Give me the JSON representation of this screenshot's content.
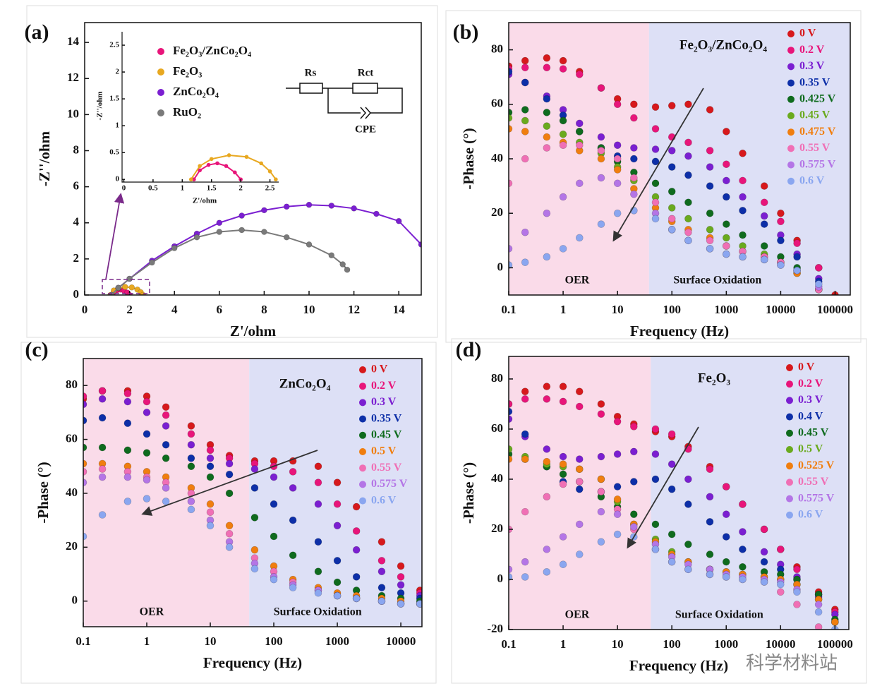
{
  "chart_data": [
    {
      "type": "scatter",
      "panel_label": "(a)",
      "xlabel": "Z'/ohm",
      "ylabel": "-Z''/ohm",
      "xlim": [
        0,
        15
      ],
      "ylim": [
        0,
        15.1
      ],
      "xticks": [
        0,
        2,
        4,
        6,
        8,
        10,
        12,
        14
      ],
      "yticks": [
        0,
        2,
        4,
        6,
        8,
        10,
        12,
        14
      ],
      "series": [
        {
          "name": "Fe₂O₃/ZnCo₂O₄",
          "color": "#e8157a",
          "x": [
            1.2,
            1.3,
            1.45,
            1.6,
            1.75,
            1.9,
            2.0
          ],
          "values": [
            0,
            0.17,
            0.27,
            0.3,
            0.25,
            0.13,
            0
          ]
        },
        {
          "name": "Fe₂O₃",
          "color": "#e8a820",
          "x": [
            1.15,
            1.3,
            1.5,
            1.8,
            2.1,
            2.35,
            2.5,
            2.6
          ],
          "values": [
            0,
            0.25,
            0.38,
            0.45,
            0.42,
            0.3,
            0.15,
            0
          ]
        },
        {
          "name": "ZnCo₂O₄",
          "color": "#7b1fd1",
          "x": [
            1.2,
            1.5,
            2,
            3,
            4,
            5,
            6,
            7,
            8,
            9,
            10,
            11,
            12,
            13,
            14,
            15
          ],
          "values": [
            0,
            0.4,
            0.9,
            1.9,
            2.7,
            3.4,
            4.0,
            4.4,
            4.7,
            4.9,
            5.0,
            4.95,
            4.8,
            4.5,
            4.1,
            2.8
          ]
        },
        {
          "name": "RuO₂",
          "color": "#7a7a7a",
          "x": [
            1.2,
            1.5,
            2,
            3,
            4,
            5,
            6,
            7,
            8,
            9,
            10,
            11,
            11.5,
            11.7
          ],
          "values": [
            0,
            0.4,
            0.9,
            1.8,
            2.6,
            3.2,
            3.5,
            3.6,
            3.5,
            3.2,
            2.8,
            2.2,
            1.7,
            1.4
          ]
        }
      ],
      "inset": {
        "xlabel": "Z'/ohm",
        "ylabel": "-Z''/ohm",
        "xlim": [
          -0.03,
          2.65
        ],
        "ylim": [
          -0.05,
          2.75
        ],
        "xticks": [
          0.0,
          0.5,
          1.0,
          1.5,
          2.0,
          2.5
        ],
        "yticks": [
          0.0,
          0.5,
          1.0,
          1.5,
          2.0,
          2.5
        ]
      },
      "circuit": {
        "labels": [
          "Rs",
          "Rct",
          "CPE"
        ]
      }
    },
    {
      "type": "scatter",
      "panel_label": "(b)",
      "annotation": "Fe₂O₃/ZnCo₂O₄",
      "xlabel": "Frequency (Hz)",
      "ylabel": "-Phase (°)",
      "xscale": "log",
      "x": [
        0.1,
        0.2,
        0.5,
        1,
        2,
        5,
        10,
        20,
        50,
        100,
        200,
        500,
        1000,
        2000,
        5000,
        10000,
        20000,
        50000,
        100000
      ],
      "xlim": [
        0.1,
        190000
      ],
      "xticks": [
        0.1,
        1,
        10,
        100,
        1000,
        10000,
        100000
      ],
      "ylim": [
        -10,
        90
      ],
      "yticks": [
        0,
        20,
        40,
        60,
        80
      ],
      "regions": [
        {
          "label": "OER",
          "from": 0.1,
          "to": 38,
          "color": "#fadbe9"
        },
        {
          "label": "Surface Oxidation",
          "from": 38,
          "to": 190000,
          "color": "#dde0f6"
        }
      ],
      "series": [
        {
          "name": "0 V",
          "color": "#d7191c",
          "values": [
            74,
            76,
            77,
            76,
            72,
            66,
            62,
            60,
            59,
            59.5,
            60,
            58,
            50,
            42,
            30,
            20,
            10,
            0,
            -10
          ]
        },
        {
          "name": "0.2 V",
          "color": "#e8157a",
          "values": [
            73,
            73.5,
            73.5,
            73,
            71,
            66,
            60,
            55,
            51,
            48,
            46,
            43,
            38,
            32,
            24,
            17,
            9,
            0,
            null
          ]
        },
        {
          "name": "0.3 V",
          "color": "#7b1fd1",
          "values": [
            71,
            68,
            63,
            58,
            53,
            48,
            45,
            44,
            43.5,
            43,
            41,
            37,
            32,
            26,
            19,
            12,
            5,
            -4,
            null
          ]
        },
        {
          "name": "0.35 V",
          "color": "#0d2fa8",
          "values": [
            72,
            68,
            62,
            56,
            50,
            44,
            41,
            40,
            39,
            37,
            34,
            30,
            26,
            21,
            16,
            10,
            4,
            -5,
            null
          ]
        },
        {
          "name": "0.425 V",
          "color": "#0f6b1e",
          "values": [
            57,
            58,
            57,
            54,
            50,
            44,
            39,
            35,
            31,
            28,
            24,
            20,
            16,
            12,
            8,
            4,
            0,
            -8,
            null
          ]
        },
        {
          "name": "0.45 V",
          "color": "#6aaa1e",
          "values": [
            55,
            54,
            52,
            49,
            46,
            42,
            37,
            32,
            26,
            22,
            18,
            14,
            11,
            8,
            5,
            2,
            -2,
            -8,
            null
          ]
        },
        {
          "name": "0.475 V",
          "color": "#f07e0f",
          "values": [
            51,
            50,
            48,
            46,
            43,
            40,
            36,
            29,
            22,
            17,
            14,
            11,
            8,
            6,
            4,
            2,
            -2,
            -8,
            null
          ]
        },
        {
          "name": "0.55 V",
          "color": "#f06fb5",
          "values": [
            31,
            40,
            44,
            45,
            45,
            43,
            40,
            33,
            24,
            18,
            13,
            10,
            8,
            6,
            4,
            2,
            -1,
            -8,
            null
          ]
        },
        {
          "name": "0.575 V",
          "color": "#b475e6",
          "values": [
            7,
            13,
            20,
            26,
            31,
            33,
            31,
            27,
            20,
            14,
            10,
            7,
            5,
            4,
            3,
            1,
            -1,
            -7,
            null
          ]
        },
        {
          "name": "0.6 V",
          "color": "#8aa6f0",
          "values": [
            1,
            2,
            4,
            7,
            11,
            16,
            20,
            21,
            18,
            14,
            10,
            7,
            5,
            4,
            3,
            1,
            -1,
            -6,
            null
          ]
        }
      ]
    },
    {
      "type": "scatter",
      "panel_label": "(c)",
      "annotation": "ZnCo₂O₄",
      "xlabel": "Frequency (Hz)",
      "ylabel": "-Phase (°)",
      "xscale": "log",
      "x": [
        0.1,
        0.2,
        0.5,
        1,
        2,
        5,
        10,
        20,
        50,
        100,
        200,
        500,
        1000,
        2000,
        5000,
        10000,
        20000
      ],
      "xlim": [
        0.1,
        21500
      ],
      "xticks": [
        0.1,
        1,
        10,
        100,
        1000,
        10000
      ],
      "ylim": [
        -9.5,
        90
      ],
      "yticks": [
        0,
        20,
        40,
        60,
        80
      ],
      "regions": [
        {
          "label": "OER",
          "from": 0.1,
          "to": 41,
          "color": "#fadbe9"
        },
        {
          "label": "Surface Oxidation",
          "from": 41,
          "to": 21500,
          "color": "#dde0f6"
        }
      ],
      "series": [
        {
          "name": "0 V",
          "color": "#d7191c",
          "values": [
            75,
            78,
            78,
            76,
            72,
            65,
            58,
            54,
            52,
            52,
            52,
            50,
            44,
            35,
            22,
            13,
            4
          ]
        },
        {
          "name": "0.2 V",
          "color": "#e8157a",
          "values": [
            76,
            78,
            77,
            74,
            69,
            62,
            56,
            53,
            51,
            50,
            48,
            44,
            36,
            26,
            15,
            9,
            3
          ]
        },
        {
          "name": "0.3 V",
          "color": "#7b1fd1",
          "values": [
            73,
            75,
            74,
            70,
            65,
            58,
            53,
            51,
            49,
            46,
            42,
            36,
            28,
            19,
            11,
            6,
            2
          ]
        },
        {
          "name": "0.35 V",
          "color": "#0d2fa8",
          "values": [
            67,
            68,
            66,
            62,
            58,
            53,
            50,
            47,
            42,
            36,
            30,
            22,
            15,
            9,
            5,
            3,
            1
          ]
        },
        {
          "name": "0.45 V",
          "color": "#0f6b1e",
          "values": [
            57,
            57,
            56,
            55,
            53,
            50,
            46,
            40,
            31,
            24,
            17,
            11,
            7,
            4,
            2,
            1,
            0
          ]
        },
        {
          "name": "0.5 V",
          "color": "#f07e0f",
          "values": [
            51,
            51,
            50,
            48,
            46,
            42,
            36,
            28,
            19,
            13,
            8,
            5,
            3,
            2,
            1,
            0,
            -1
          ]
        },
        {
          "name": "0.55 V",
          "color": "#f06fb5",
          "values": [
            48,
            49,
            48,
            46,
            44,
            40,
            33,
            25,
            16,
            11,
            7,
            4,
            2,
            1,
            0,
            -1,
            -1
          ]
        },
        {
          "name": "0.575 V",
          "color": "#b475e6",
          "values": [
            44,
            46,
            46,
            45,
            42,
            37,
            30,
            22,
            14,
            9,
            6,
            4,
            2,
            1,
            0,
            -1,
            -1
          ]
        },
        {
          "name": "0.6 V",
          "color": "#8aa6f0",
          "values": [
            24,
            32,
            37,
            38,
            37,
            34,
            28,
            20,
            12,
            8,
            5,
            3,
            2,
            1,
            0,
            -1,
            -1
          ]
        }
      ]
    },
    {
      "type": "scatter",
      "panel_label": "(d)",
      "annotation": "Fe₂O₃",
      "xlabel": "Frequency (Hz)",
      "ylabel": "-Phase (°)",
      "xscale": "log",
      "x": [
        0.1,
        0.2,
        0.5,
        1,
        2,
        5,
        10,
        20,
        50,
        100,
        200,
        500,
        1000,
        2000,
        5000,
        10000,
        20000,
        50000,
        100000
      ],
      "xlim": [
        0.1,
        180000
      ],
      "xticks": [
        0.1,
        1,
        10,
        100,
        1000,
        10000,
        100000
      ],
      "ylim": [
        -20,
        89
      ],
      "yticks": [
        -20,
        0,
        20,
        40,
        60,
        80
      ],
      "regions": [
        {
          "label": "OER",
          "from": 0.1,
          "to": 41,
          "color": "#fadbe9"
        },
        {
          "label": "Surface Oxidation",
          "from": 41,
          "to": 180000,
          "color": "#dde0f6"
        }
      ],
      "series": [
        {
          "name": "0 V",
          "color": "#d7191c",
          "values": [
            70,
            75,
            77,
            77,
            75,
            70,
            65,
            62,
            59,
            57,
            53,
            45,
            37,
            30,
            20,
            12,
            5,
            -5,
            -12
          ]
        },
        {
          "name": "0.2 V",
          "color": "#e8157a",
          "values": [
            70,
            72,
            72,
            71,
            69,
            66,
            63,
            61,
            60,
            58,
            52,
            44,
            37,
            30,
            20,
            12,
            4,
            -6,
            -13
          ]
        },
        {
          "name": "0.3 V",
          "color": "#7b1fd1",
          "values": [
            64,
            57,
            52,
            49,
            48,
            49,
            50,
            51,
            50,
            46,
            40,
            33,
            26,
            19,
            11,
            6,
            1,
            -7,
            -14
          ]
        },
        {
          "name": "0.4 V",
          "color": "#0d2fa8",
          "values": [
            67,
            58,
            45,
            39,
            36,
            35,
            37,
            39,
            40,
            36,
            30,
            23,
            17,
            12,
            7,
            4,
            0,
            -6,
            -17
          ]
        },
        {
          "name": "0.45 V",
          "color": "#0f6b1e",
          "values": [
            50,
            48,
            45,
            42,
            39,
            33,
            29,
            26,
            22,
            18,
            14,
            10,
            7,
            5,
            3,
            2,
            0,
            -6,
            -16
          ]
        },
        {
          "name": "0.5 V",
          "color": "#6aaa1e",
          "values": [
            52,
            49,
            46,
            45,
            44,
            40,
            31,
            22,
            16,
            11,
            7,
            4,
            3,
            2,
            1,
            0,
            -2,
            -8,
            -17
          ]
        },
        {
          "name": "0.525 V",
          "color": "#f07e0f",
          "values": [
            48,
            48,
            47,
            46,
            44,
            40,
            32,
            22,
            15,
            10,
            7,
            4,
            3,
            2,
            1,
            0,
            -2,
            -8,
            -17
          ]
        },
        {
          "name": "0.55 V",
          "color": "#f06fb5",
          "values": [
            20,
            27,
            33,
            38,
            39,
            35,
            28,
            20,
            12,
            7,
            4,
            2,
            1,
            0,
            -1,
            -5,
            -10,
            -19,
            null
          ]
        },
        {
          "name": "0.575 V",
          "color": "#b475e6",
          "values": [
            4,
            7,
            12,
            17,
            22,
            27,
            26,
            21,
            14,
            9,
            6,
            4,
            2,
            1,
            0,
            -1,
            -4,
            -10,
            null
          ]
        },
        {
          "name": "0.6 V",
          "color": "#8aa6f0",
          "values": [
            1,
            1,
            3,
            6,
            10,
            15,
            18,
            17,
            12,
            7,
            4,
            2,
            1,
            0,
            -1,
            -2,
            -5,
            -13,
            -20
          ]
        }
      ]
    }
  ],
  "watermark": "科学材料站"
}
